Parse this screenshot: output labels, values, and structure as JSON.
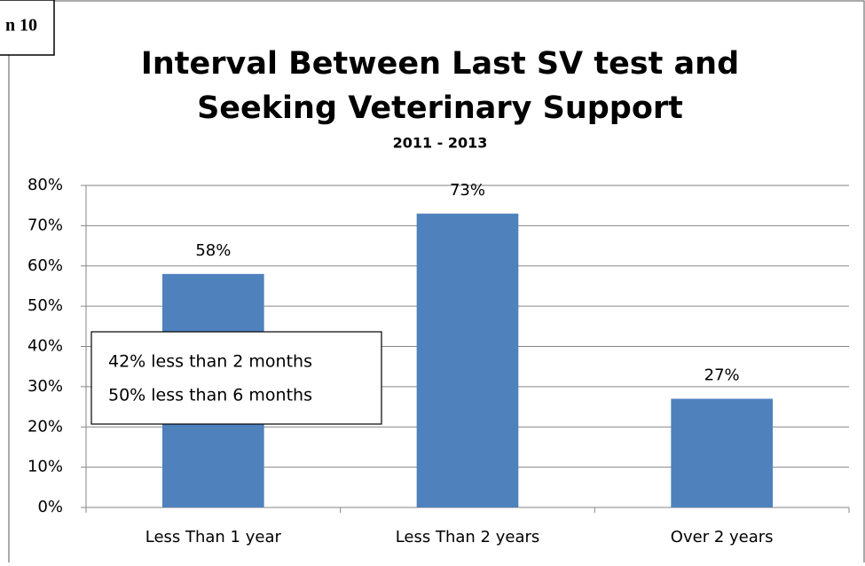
{
  "chart_data": {
    "type": "bar",
    "corner_label": "n 10",
    "title": [
      "Interval Between Last SV test and",
      "Seeking Veterinary Support"
    ],
    "subtitle": "2011 - 2013",
    "categories": [
      "Less Than 1 year",
      "Less Than 2 years",
      "Over 2 years"
    ],
    "values": [
      58,
      73,
      27
    ],
    "value_labels": [
      "58%",
      "73%",
      "27%"
    ],
    "color": "#4f81bd",
    "ylim": [
      0,
      80
    ],
    "yticks": [
      {
        "value": 0,
        "label": "0%"
      },
      {
        "value": 10,
        "label": "10%"
      },
      {
        "value": 20,
        "label": "20%"
      },
      {
        "value": 30,
        "label": "30%"
      },
      {
        "value": 40,
        "label": "40%"
      },
      {
        "value": 50,
        "label": "50%"
      },
      {
        "value": 60,
        "label": "60%"
      },
      {
        "value": 70,
        "label": "70%"
      },
      {
        "value": 80,
        "label": "80%"
      }
    ],
    "grid": true,
    "annotation": [
      "42% less than 2 months",
      "50% less than 6 months"
    ]
  }
}
